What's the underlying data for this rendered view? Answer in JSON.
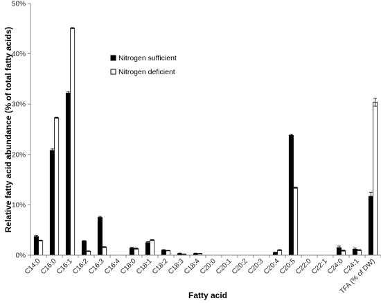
{
  "chart_data": {
    "type": "bar",
    "xlabel": "Fatty acid",
    "ylabel": "Relative fatty acid abundance (% of total fatty acids)",
    "ylim": [
      0,
      50
    ],
    "yticks": [
      "0%",
      "10%",
      "20%",
      "30%",
      "40%",
      "50%"
    ],
    "ytick_values": [
      0,
      10,
      20,
      30,
      40,
      50
    ],
    "grid": false,
    "legend_position": "top-left",
    "categories": [
      "C14:0",
      "C16:0",
      "C16:1",
      "C16:2",
      "C16:3",
      "C16:4",
      "C18:0",
      "C18:1",
      "C18:2",
      "C18:3",
      "C18:4",
      "C20:0",
      "C20:1",
      "C20:2",
      "C20:3",
      "C20:4",
      "C20:5",
      "C22:0",
      "C22:1",
      "C24:0",
      "C24:1",
      "TFA (% of DW)"
    ],
    "series": [
      {
        "name": "Nitrogen sufficient",
        "color": "#000000",
        "values": [
          3.7,
          20.8,
          32.2,
          2.8,
          7.5,
          0,
          1.4,
          2.5,
          1.0,
          0.3,
          0.3,
          0,
          0,
          0,
          0,
          0.5,
          23.8,
          0,
          0,
          1.5,
          1.2,
          11.7
        ],
        "errors": [
          0.2,
          0.3,
          0.3,
          0.1,
          0.2,
          0,
          0.2,
          0.2,
          0.1,
          0.1,
          0.1,
          0,
          0,
          0,
          0,
          0.1,
          0.2,
          0,
          0,
          0.3,
          0.2,
          0.8
        ]
      },
      {
        "name": "Nitrogen deficient",
        "color": "#ffffff",
        "values": [
          2.9,
          27.3,
          45.1,
          0.8,
          1.6,
          0,
          1.3,
          3.0,
          0.9,
          0.2,
          0.3,
          0,
          0,
          0,
          0,
          1.0,
          13.4,
          0,
          0,
          0.9,
          1.0,
          30.4
        ],
        "errors": [
          0.1,
          0.1,
          0.1,
          0.05,
          0.1,
          0,
          0.1,
          0.1,
          0.05,
          0.05,
          0.05,
          0,
          0,
          0,
          0,
          0.1,
          0.1,
          0,
          0,
          0.1,
          0.1,
          0.8
        ]
      }
    ]
  }
}
